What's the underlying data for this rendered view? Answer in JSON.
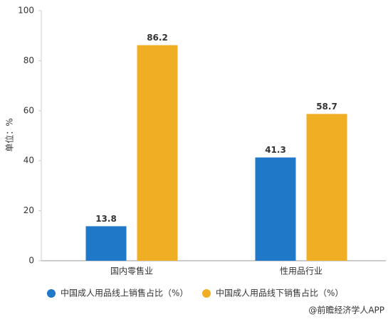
{
  "chart_data": {
    "type": "bar",
    "y_label": "单位：%",
    "categories": [
      "国内零售业",
      "性用品行业"
    ],
    "series": [
      {
        "name": "中国成人用品线上销售占比（%）",
        "color": "#1f78c8",
        "values": [
          13.8,
          41.3
        ]
      },
      {
        "name": "中国成人用品线下销售占比（%）",
        "color": "#f0ae24",
        "values": [
          86.2,
          58.7
        ]
      }
    ],
    "ylim": [
      0,
      100
    ],
    "yticks": [
      0,
      20,
      40,
      60,
      80,
      100
    ],
    "grid": false,
    "legend": "bottom",
    "source": "@前瞻经济学人APP"
  }
}
